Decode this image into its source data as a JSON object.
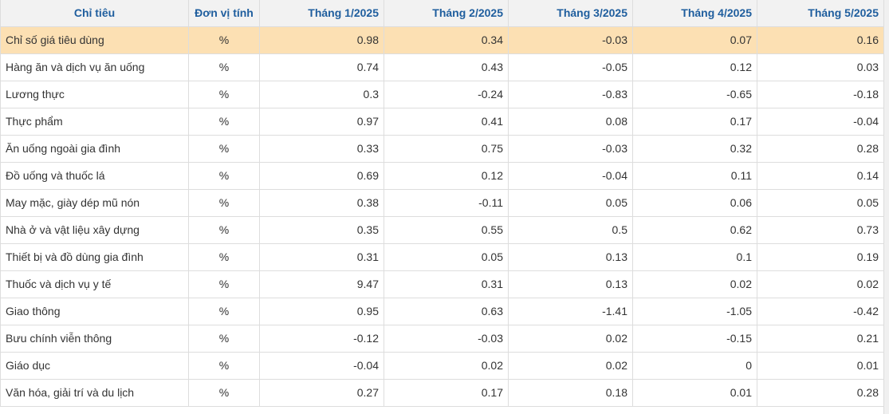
{
  "table": {
    "headers": {
      "name": "Chỉ tiêu",
      "unit": "Đơn vị tính",
      "months": [
        "Tháng 1/2025",
        "Tháng 2/2025",
        "Tháng 3/2025",
        "Tháng 4/2025",
        "Tháng 5/2025"
      ]
    },
    "highlight_color": "#fce0b3",
    "header_text_color": "#1f5e9e",
    "rows": [
      {
        "name": "Chỉ số giá tiêu dùng",
        "unit": "%",
        "values": [
          "0.98",
          "0.34",
          "-0.03",
          "0.07",
          "0.16"
        ],
        "highlighted": true
      },
      {
        "name": "Hàng ăn và dịch vụ ăn uống",
        "unit": "%",
        "values": [
          "0.74",
          "0.43",
          "-0.05",
          "0.12",
          "0.03"
        ]
      },
      {
        "name": "Lương thực",
        "unit": "%",
        "values": [
          "0.3",
          "-0.24",
          "-0.83",
          "-0.65",
          "-0.18"
        ]
      },
      {
        "name": "Thực phẩm",
        "unit": "%",
        "values": [
          "0.97",
          "0.41",
          "0.08",
          "0.17",
          "-0.04"
        ]
      },
      {
        "name": "Ăn uống ngoài gia đình",
        "unit": "%",
        "values": [
          "0.33",
          "0.75",
          "-0.03",
          "0.32",
          "0.28"
        ]
      },
      {
        "name": "Đồ uống và thuốc lá",
        "unit": "%",
        "values": [
          "0.69",
          "0.12",
          "-0.04",
          "0.11",
          "0.14"
        ]
      },
      {
        "name": "May mặc, giày dép mũ nón",
        "unit": "%",
        "values": [
          "0.38",
          "-0.11",
          "0.05",
          "0.06",
          "0.05"
        ]
      },
      {
        "name": "Nhà ở và vật liệu xây dựng",
        "unit": "%",
        "values": [
          "0.35",
          "0.55",
          "0.5",
          "0.62",
          "0.73"
        ]
      },
      {
        "name": "Thiết bị và đồ dùng gia đình",
        "unit": "%",
        "values": [
          "0.31",
          "0.05",
          "0.13",
          "0.1",
          "0.19"
        ]
      },
      {
        "name": "Thuốc và dịch vụ y tế",
        "unit": "%",
        "values": [
          "9.47",
          "0.31",
          "0.13",
          "0.02",
          "0.02"
        ]
      },
      {
        "name": "Giao thông",
        "unit": "%",
        "values": [
          "0.95",
          "0.63",
          "-1.41",
          "-1.05",
          "-0.42"
        ]
      },
      {
        "name": "Bưu chính viễn thông",
        "unit": "%",
        "values": [
          "-0.12",
          "-0.03",
          "0.02",
          "-0.15",
          "0.21"
        ]
      },
      {
        "name": "Giáo dục",
        "unit": "%",
        "values": [
          "-0.04",
          "0.02",
          "0.02",
          "0",
          "0.01"
        ]
      },
      {
        "name": "Văn hóa, giải trí và du lịch",
        "unit": "%",
        "values": [
          "0.27",
          "0.17",
          "0.18",
          "0.01",
          "0.28"
        ]
      }
    ]
  }
}
